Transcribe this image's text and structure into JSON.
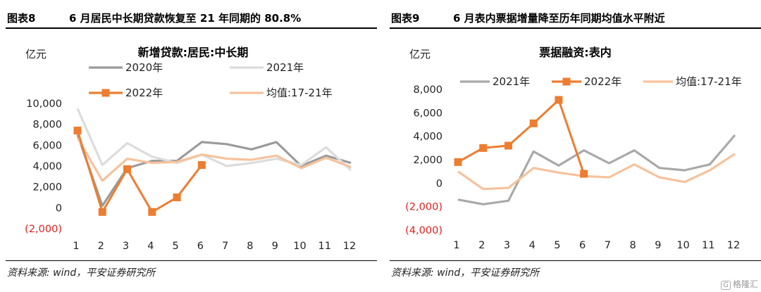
{
  "figures": [
    {
      "figure_no": "图表8",
      "figure_title": "6 月居民中长期贷款恢复至 21 年同期的 80.8%",
      "source": "资料来源: wind，平安证券研究所",
      "chart_data": {
        "type": "line",
        "title": "新增贷款:居民:中长期",
        "unit_label": "亿元",
        "xlabel": "",
        "ylabel": "",
        "x": [
          1,
          2,
          3,
          4,
          5,
          6,
          7,
          8,
          9,
          10,
          11,
          12
        ],
        "ylim": [
          -2000,
          10000
        ],
        "yticks": [
          -2000,
          0,
          2000,
          4000,
          6000,
          8000,
          10000
        ],
        "ytick_labels": [
          "(2,000)",
          "0",
          "2,000",
          "4,000",
          "6,000",
          "8,000",
          "10,000"
        ],
        "negative_tick_color": "#e02020",
        "legend_placement": "top, two columns",
        "grid": false,
        "series": [
          {
            "name": "2020年",
            "color": "#9b9b9b",
            "marker": false,
            "values": [
              7000,
              200,
              3800,
              4500,
              4500,
              6300,
              6100,
              5600,
              6300,
              4000,
              5000,
              4300
            ]
          },
          {
            "name": "2021年",
            "color": "#dcdcdc",
            "marker": false,
            "values": [
              9500,
              4100,
              6200,
              4900,
              4300,
              5100,
              4000,
              4300,
              4700,
              4100,
              5800,
              3600
            ]
          },
          {
            "name": "2022年",
            "color": "#ed7d31",
            "marker": true,
            "values": [
              7400,
              -400,
              3700,
              -400,
              1000,
              4100,
              null,
              null,
              null,
              null,
              null,
              null
            ]
          },
          {
            "name": "均值:17-21年",
            "color": "#f6c29c",
            "marker": false,
            "values": [
              6700,
              2600,
              4700,
              4300,
              4400,
              5100,
              4700,
              4600,
              5000,
              3800,
              4800,
              3900
            ]
          }
        ]
      }
    },
    {
      "figure_no": "图表9",
      "figure_title": "6 月表内票据增量降至历年同期均值水平附近",
      "source": "资料来源: wind，平安证券研究所",
      "chart_data": {
        "type": "line",
        "title": "票据融资:表内",
        "unit_label": "亿元",
        "xlabel": "",
        "ylabel": "",
        "x": [
          1,
          2,
          3,
          4,
          5,
          6,
          7,
          8,
          9,
          10,
          11,
          12
        ],
        "ylim": [
          -4000,
          8000
        ],
        "yticks": [
          -4000,
          -2000,
          0,
          2000,
          4000,
          6000,
          8000
        ],
        "ytick_labels": [
          "(4,000)",
          "(2,000)",
          "0",
          "2,000",
          "4,000",
          "6,000",
          "8,000"
        ],
        "negative_tick_color": "#e02020",
        "legend_placement": "top, one row",
        "grid": false,
        "series": [
          {
            "name": "2021年",
            "color": "#a9a9a9",
            "marker": false,
            "values": [
              -1400,
              -1800,
              -1500,
              2700,
              1500,
              2800,
              1700,
              2800,
              1300,
              1100,
              1600,
              4100
            ]
          },
          {
            "name": "2022年",
            "color": "#ed7d31",
            "marker": true,
            "values": [
              1800,
              3000,
              3200,
              5100,
              7100,
              800,
              null,
              null,
              null,
              null,
              null,
              null
            ]
          },
          {
            "name": "均值:17-21年",
            "color": "#f6c29c",
            "marker": false,
            "values": [
              1000,
              -500,
              -400,
              1300,
              900,
              600,
              500,
              1600,
              500,
              100,
              1100,
              2500
            ]
          }
        ]
      }
    }
  ],
  "watermark": {
    "badge": "G",
    "text": "格隆汇"
  }
}
